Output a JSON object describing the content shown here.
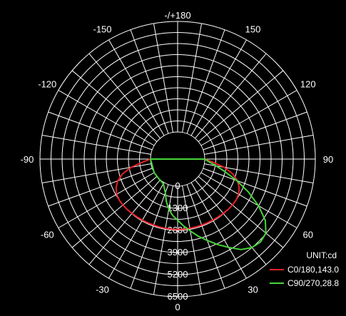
{
  "chart_data": {
    "type": "polar",
    "title": "",
    "unit_label": "UNIT:cd",
    "radial_max": 6500,
    "radial_ticks": [
      0,
      1300,
      2600,
      3900,
      5200,
      6500
    ],
    "radial_tick_labels": [
      "0",
      "1300",
      "2600",
      "3900",
      "5200",
      "6500"
    ],
    "angle_labels": [
      {
        "angle": 180,
        "label": "-/+180"
      },
      {
        "angle": 150,
        "label": "150"
      },
      {
        "angle": 120,
        "label": "120"
      },
      {
        "angle": 90,
        "label": "90"
      },
      {
        "angle": 60,
        "label": "60"
      },
      {
        "angle": 30,
        "label": "30"
      },
      {
        "angle": 0,
        "label": "0"
      },
      {
        "angle": -30,
        "label": "-30"
      },
      {
        "angle": -60,
        "label": "-60"
      },
      {
        "angle": -90,
        "label": "-90"
      },
      {
        "angle": -120,
        "label": "-120"
      },
      {
        "angle": -150,
        "label": "-150"
      }
    ],
    "grid": true,
    "legend_position": "bottom-right",
    "series": [
      {
        "name": "C0/180,143.0",
        "color": "#e8202a",
        "points": [
          [
            -90,
            0
          ],
          [
            -85,
            480
          ],
          [
            -80,
            1180
          ],
          [
            -75,
            1760
          ],
          [
            -70,
            2150
          ],
          [
            -65,
            2400
          ],
          [
            -60,
            2540
          ],
          [
            -55,
            2600
          ],
          [
            -50,
            2610
          ],
          [
            -45,
            2600
          ],
          [
            -40,
            2580
          ],
          [
            -35,
            2560
          ],
          [
            -30,
            2550
          ],
          [
            -25,
            2540
          ],
          [
            -20,
            2540
          ],
          [
            -15,
            2540
          ],
          [
            -10,
            2540
          ],
          [
            -5,
            2540
          ],
          [
            0,
            2540
          ],
          [
            5,
            2540
          ],
          [
            10,
            2540
          ],
          [
            15,
            2540
          ],
          [
            20,
            2540
          ],
          [
            25,
            2540
          ],
          [
            30,
            2550
          ],
          [
            35,
            2560
          ],
          [
            40,
            2580
          ],
          [
            45,
            2600
          ],
          [
            50,
            2610
          ],
          [
            55,
            2600
          ],
          [
            60,
            2540
          ],
          [
            65,
            2400
          ],
          [
            70,
            2150
          ],
          [
            75,
            1760
          ],
          [
            80,
            1180
          ],
          [
            85,
            480
          ],
          [
            90,
            0
          ]
        ]
      },
      {
        "name": "C90/270,28.8",
        "color": "#46d63a",
        "points": [
          [
            -90,
            0
          ],
          [
            -60,
            0
          ],
          [
            -45,
            0
          ],
          [
            -30,
            80
          ],
          [
            -20,
            520
          ],
          [
            -15,
            980
          ],
          [
            -10,
            1400
          ],
          [
            -5,
            1740
          ],
          [
            0,
            2000
          ],
          [
            5,
            2350
          ],
          [
            10,
            2700
          ],
          [
            15,
            3100
          ],
          [
            20,
            3500
          ],
          [
            25,
            3950
          ],
          [
            30,
            4400
          ],
          [
            35,
            4900
          ],
          [
            40,
            5200
          ],
          [
            45,
            5300
          ],
          [
            50,
            5180
          ],
          [
            55,
            4700
          ],
          [
            60,
            3900
          ],
          [
            65,
            3000
          ],
          [
            70,
            2100
          ],
          [
            75,
            1300
          ],
          [
            80,
            700
          ],
          [
            85,
            250
          ],
          [
            90,
            0
          ]
        ]
      }
    ]
  }
}
